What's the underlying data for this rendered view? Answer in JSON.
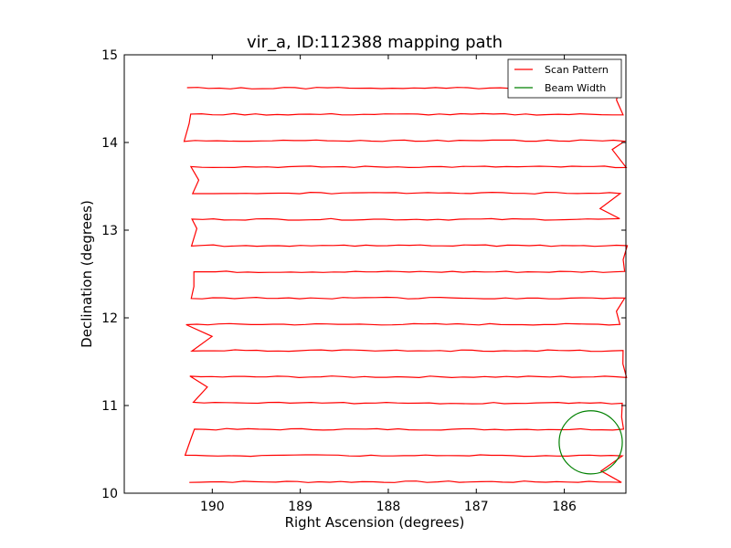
{
  "chart_data": {
    "type": "line",
    "title": "vir_a, ID:112388 mapping path",
    "xlabel": "Right Ascension (degrees)",
    "ylabel": "Declination (degrees)",
    "xlim": [
      191.0,
      185.3
    ],
    "ylim": [
      10,
      15
    ],
    "x_inverted": true,
    "xticks": [
      190,
      189,
      188,
      187,
      186
    ],
    "xtick_labels": [
      "190",
      "189",
      "188",
      "187",
      "186"
    ],
    "yticks": [
      10,
      11,
      12,
      13,
      14,
      15
    ],
    "ytick_labels": [
      "10",
      "11",
      "12",
      "13",
      "14",
      "15"
    ],
    "grid": false,
    "legend": {
      "placement": "top-right",
      "entries": [
        {
          "label": "Scan Pattern",
          "color": "#ff0000"
        },
        {
          "label": "Beam Width",
          "color": "#008000"
        }
      ]
    },
    "series": [
      {
        "name": "Scan Pattern",
        "color": "#ff0000",
        "rows_start_dec": 10.13,
        "rows_end_dec": 14.62,
        "row_count": 16,
        "ra_west": 190.25,
        "ra_east": 185.32
      },
      {
        "name": "Beam Width",
        "color": "#008000",
        "shape": "circle",
        "center_ra": 185.7,
        "center_dec": 10.58,
        "radius_dec": 0.36
      }
    ]
  }
}
